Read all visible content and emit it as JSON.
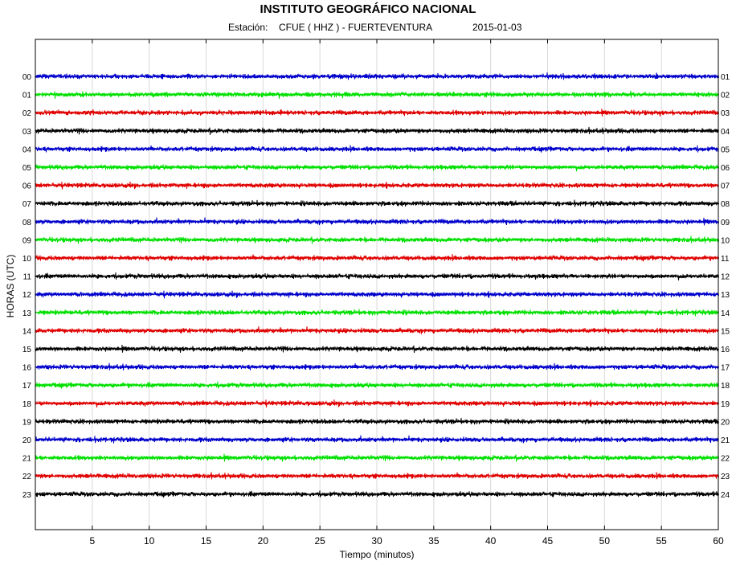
{
  "title": "INSTITUTO GEOGRÁFICO NACIONAL",
  "station": {
    "label": "Estación:",
    "name": "CFUE ( HHZ ) - FUERTEVENTURA",
    "date": "2015-01-03"
  },
  "chart_data": {
    "type": "line",
    "title": "INSTITUTO GEOGRÁFICO NACIONAL",
    "xlabel": "Tiempo (minutos)",
    "ylabel": "HORAS (UTC)",
    "xlim": [
      0,
      60
    ],
    "x_ticks": [
      5,
      10,
      15,
      20,
      25,
      30,
      35,
      40,
      45,
      50,
      55,
      60
    ],
    "grid": "vertical",
    "left_hour_labels": [
      "00",
      "01",
      "02",
      "03",
      "04",
      "05",
      "06",
      "07",
      "08",
      "09",
      "10",
      "11",
      "12",
      "13",
      "14",
      "15",
      "16",
      "17",
      "18",
      "19",
      "20",
      "21",
      "22",
      "23"
    ],
    "right_hour_labels": [
      "01",
      "02",
      "03",
      "04",
      "05",
      "06",
      "07",
      "08",
      "09",
      "10",
      "11",
      "12",
      "13",
      "14",
      "15",
      "16",
      "17",
      "18",
      "19",
      "20",
      "21",
      "22",
      "23",
      "24"
    ],
    "trace_colors": [
      "#0000cc",
      "#00e000",
      "#e00000",
      "#000000"
    ]
  }
}
